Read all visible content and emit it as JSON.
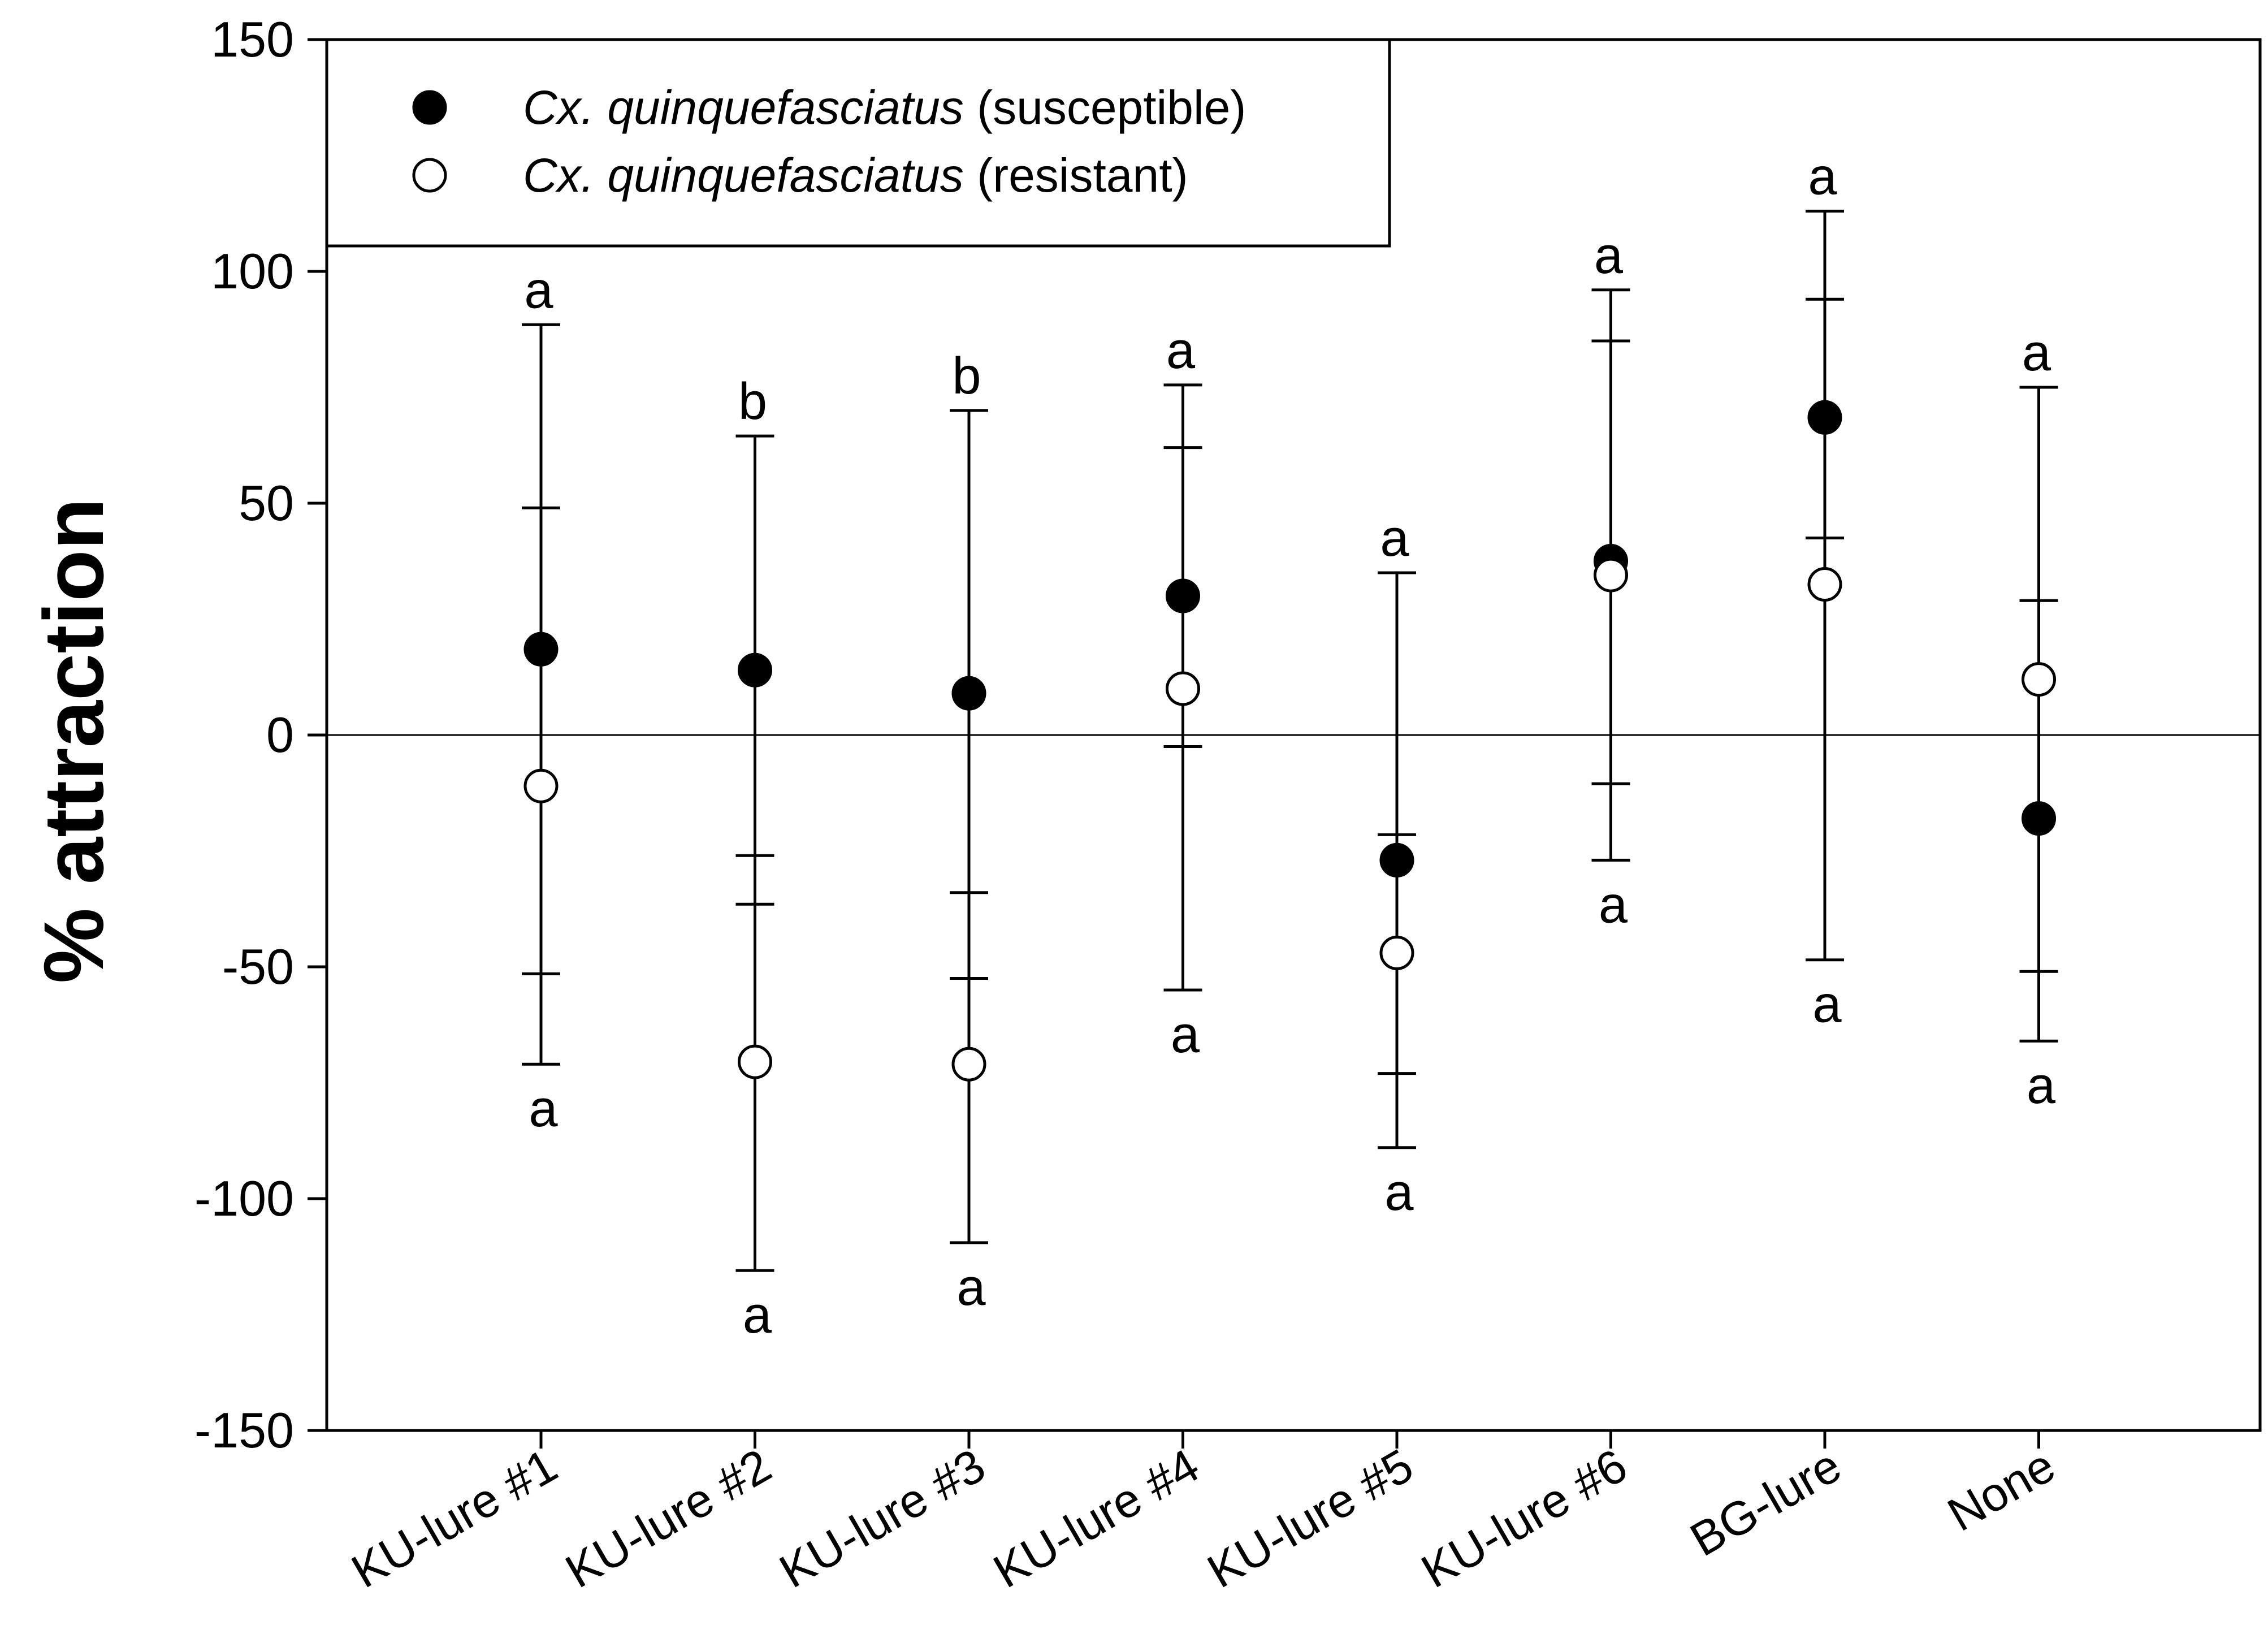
{
  "chart_data": {
    "type": "scatter",
    "title": "",
    "xlabel": "",
    "ylabel": "% attraction",
    "ylim": [
      -150,
      150
    ],
    "yticks": [
      150,
      100,
      50,
      0,
      -50,
      -100,
      -150
    ],
    "grid": false,
    "reference_line_y": 0,
    "legend_position": "top-left",
    "categories": [
      "KU-lure #1",
      "KU-lure #2",
      "KU-lure #3",
      "KU-lure #4",
      "KU-lure #5",
      "KU-lure #6",
      "BG-lure",
      "None"
    ],
    "series": [
      {
        "name_italic": "Cx. quinquefasciatus",
        "name_suffix": " (susceptible)",
        "marker": "filled-circle",
        "color": "#000000",
        "values": [
          18.5,
          14,
          9,
          30,
          -27,
          37.5,
          68.5,
          -18
        ],
        "err_low": [
          -51.5,
          -36.5,
          -52.5,
          -2.5,
          -73,
          -10.5,
          42.5,
          -51
        ],
        "err_high": [
          49,
          64.5,
          70,
          62,
          35,
          85,
          94,
          29
        ],
        "letters": [
          "a",
          "b",
          "b",
          "a",
          "a",
          "a",
          "a",
          "a"
        ]
      },
      {
        "name_italic": "Cx. quinquefasciatus",
        "name_suffix": " (resistant)",
        "marker": "open-circle",
        "color": "#000000",
        "values": [
          -11,
          -70.5,
          -71,
          10,
          -47,
          34.5,
          32.5,
          12
        ],
        "err_low": [
          -71,
          -115.5,
          -109.5,
          -55,
          -89,
          -27,
          -48.5,
          -66
        ],
        "err_high": [
          88.5,
          -26,
          -34,
          75.5,
          -21.5,
          96,
          113,
          75
        ],
        "letters": [
          "a",
          "a",
          "a",
          "a",
          "a",
          "a",
          "a",
          "a"
        ]
      }
    ]
  }
}
